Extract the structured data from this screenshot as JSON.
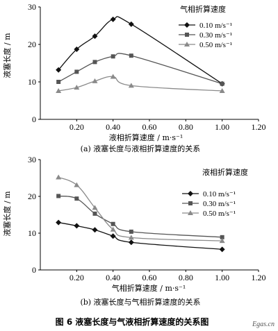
{
  "figure_title": "图 6    液塞长度与气液相折算速度的关系图",
  "watermark": "Egas.cn",
  "chart_data": [
    {
      "type": "line",
      "caption": "(a) 液塞长度与液相折算速度的关系",
      "xlabel": "液相折算速度 / m·s⁻¹",
      "ylabel": "液塞长度 / m",
      "xlim": [
        0,
        1.2
      ],
      "ylim": [
        0,
        30
      ],
      "xticks": [
        "0.20",
        "0.40",
        "0.60",
        "0.80",
        "1.00",
        "1.20"
      ],
      "yticks": [
        "0",
        "10",
        "20",
        "30"
      ],
      "legend_title": "气相折算速度",
      "legend_position": "top-right",
      "series": [
        {
          "name": "0.10 m/s⁻¹",
          "marker": "diamond",
          "x": [
            0.1,
            0.2,
            0.3,
            0.4,
            0.5,
            1.0
          ],
          "y": [
            13.2,
            18.7,
            22.2,
            26.7,
            25.4,
            9.5
          ]
        },
        {
          "name": "0.30 m/s⁻¹",
          "marker": "square",
          "x": [
            0.1,
            0.2,
            0.3,
            0.4,
            0.5,
            1.0
          ],
          "y": [
            10.0,
            12.7,
            15.3,
            16.8,
            17.0,
            9.5
          ]
        },
        {
          "name": "0.50 m/s⁻¹",
          "marker": "triangle",
          "x": [
            0.1,
            0.2,
            0.3,
            0.4,
            0.5,
            1.0
          ],
          "y": [
            7.6,
            8.5,
            10.2,
            11.4,
            9.0,
            7.6
          ]
        }
      ]
    },
    {
      "type": "line",
      "caption": "(b) 液塞长度与气相折算速度的关系",
      "xlabel": "气相折算速度 / m·s⁻¹",
      "ylabel": "液塞长度 / m",
      "xlim": [
        0,
        1.2
      ],
      "ylim": [
        0,
        30
      ],
      "xticks": [
        "0.20",
        "0.40",
        "0.60",
        "0.80",
        "1.00",
        "1.20"
      ],
      "yticks": [
        "0",
        "10",
        "20",
        "30"
      ],
      "legend_title": "液相折算速度",
      "legend_position": "top-right",
      "series": [
        {
          "name": "0.10 m/s⁻¹",
          "marker": "diamond",
          "x": [
            0.1,
            0.2,
            0.3,
            0.4,
            0.5,
            1.0
          ],
          "y": [
            12.9,
            12.0,
            10.9,
            9.2,
            7.5,
            5.6
          ]
        },
        {
          "name": "0.30 m/s⁻¹",
          "marker": "square",
          "x": [
            0.1,
            0.2,
            0.3,
            0.4,
            0.5,
            1.0
          ],
          "y": [
            20.1,
            19.4,
            15.3,
            12.5,
            10.4,
            8.9
          ]
        },
        {
          "name": "0.50 m/s⁻¹",
          "marker": "triangle",
          "x": [
            0.1,
            0.2,
            0.3,
            0.4,
            0.5,
            1.0
          ],
          "y": [
            25.2,
            23.1,
            16.9,
            11.0,
            8.8,
            7.9
          ]
        }
      ]
    }
  ]
}
